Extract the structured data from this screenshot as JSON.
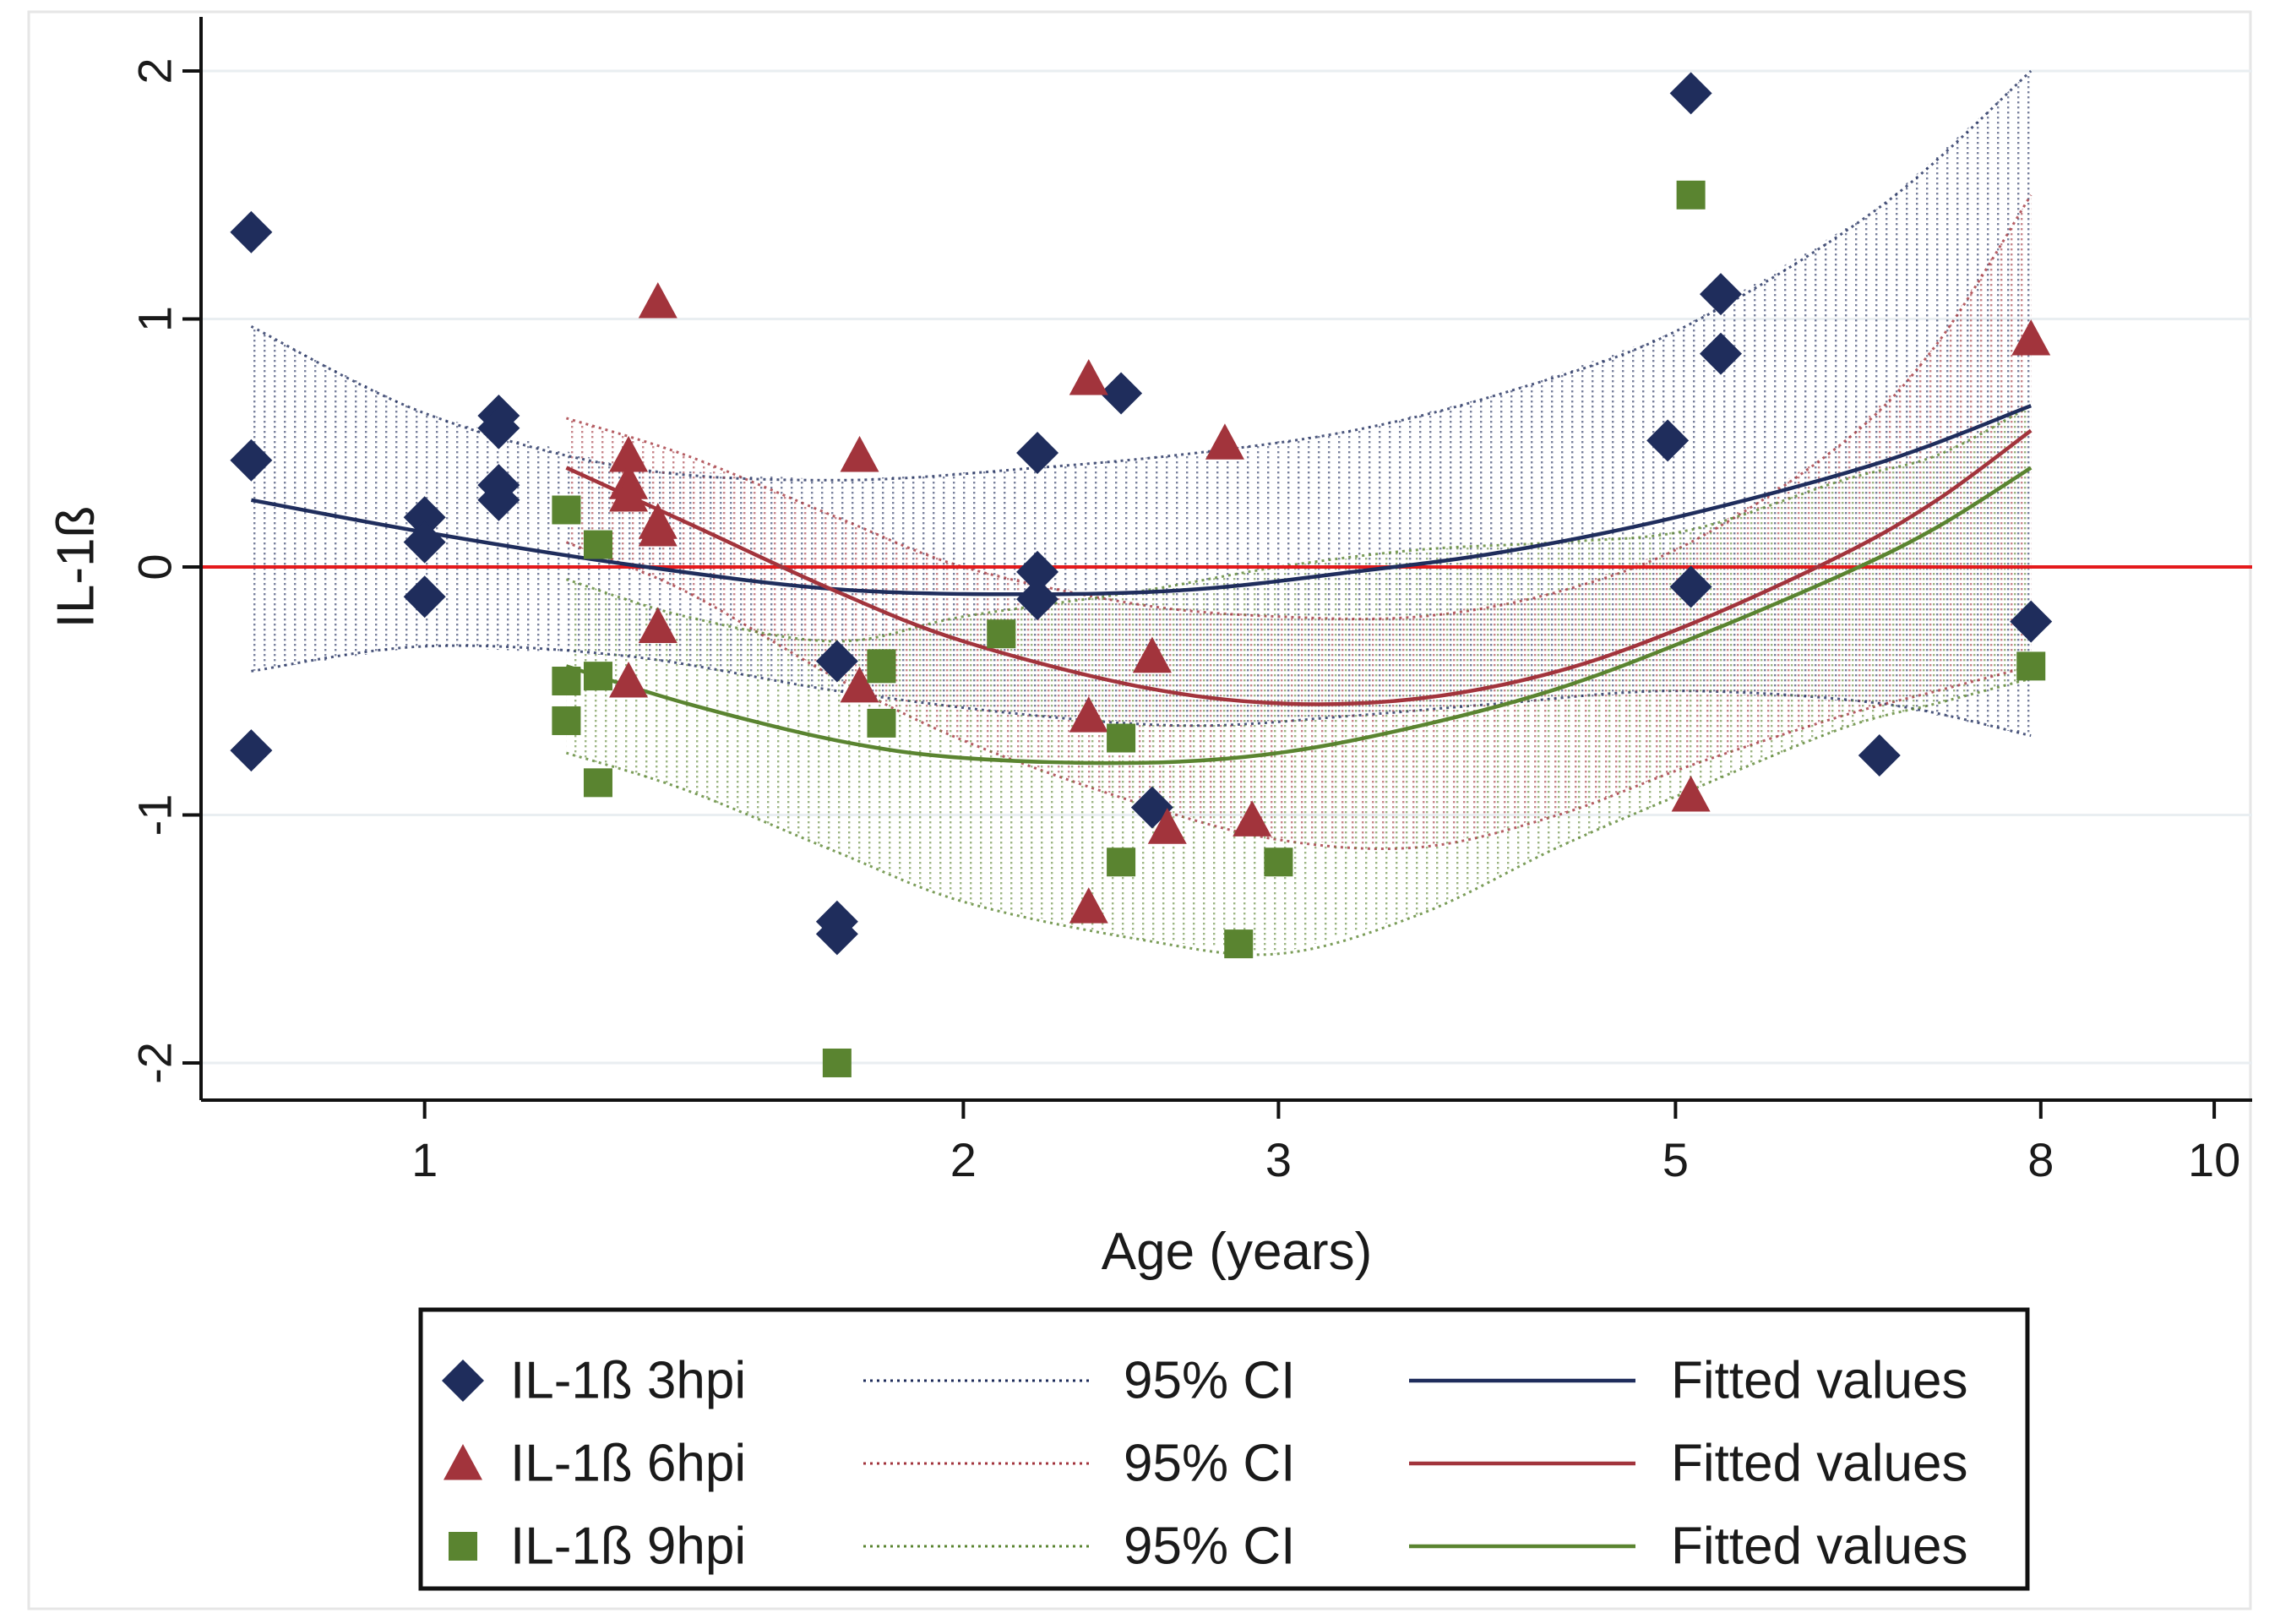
{
  "chart_data": {
    "type": "scatter",
    "title": "",
    "xlabel": "Age (years)",
    "ylabel": "IL-1ß",
    "xscale": "log",
    "xlim": [
      0.75,
      10.5
    ],
    "ylim": [
      -2.15,
      2.15
    ],
    "xticks": [
      1,
      2,
      3,
      5,
      8,
      10
    ],
    "yticks": [
      -2,
      -1,
      0,
      1,
      2
    ],
    "x_tick_labels": [
      "1",
      "2",
      "3",
      "5",
      "8",
      "10"
    ],
    "y_tick_labels": [
      "-2",
      "-1",
      "0",
      "1",
      "2"
    ],
    "reference_line": {
      "y": 0,
      "color": "#e41a1c"
    },
    "grid": true,
    "legend_position": "bottom",
    "series": [
      {
        "name": "IL-1ß 3hpi",
        "marker": "diamond",
        "color": "#1f2d5c",
        "points": [
          [
            0.8,
            1.35
          ],
          [
            0.8,
            0.43
          ],
          [
            0.8,
            -0.74
          ],
          [
            1.0,
            0.2
          ],
          [
            1.0,
            0.1
          ],
          [
            1.0,
            -0.12
          ],
          [
            1.1,
            0.61
          ],
          [
            1.1,
            0.56
          ],
          [
            1.1,
            0.33
          ],
          [
            1.1,
            0.27
          ],
          [
            1.7,
            -0.38
          ],
          [
            1.7,
            -1.43
          ],
          [
            1.7,
            -1.48
          ],
          [
            2.2,
            0.46
          ],
          [
            2.2,
            -0.02
          ],
          [
            2.2,
            -0.13
          ],
          [
            2.45,
            0.7
          ],
          [
            2.55,
            -0.97
          ],
          [
            4.95,
            0.51
          ],
          [
            5.1,
            1.91
          ],
          [
            5.1,
            -0.08
          ],
          [
            5.3,
            1.1
          ],
          [
            5.3,
            0.86
          ],
          [
            6.5,
            -0.76
          ],
          [
            7.9,
            -0.22
          ]
        ],
        "fit": [
          [
            0.8,
            0.27
          ],
          [
            1.0,
            0.14
          ],
          [
            1.3,
            0.01
          ],
          [
            1.7,
            -0.09
          ],
          [
            2.2,
            -0.11
          ],
          [
            2.7,
            -0.09
          ],
          [
            3.3,
            -0.02
          ],
          [
            4.0,
            0.06
          ],
          [
            5.0,
            0.2
          ],
          [
            6.5,
            0.42
          ],
          [
            7.9,
            0.65
          ]
        ],
        "ci_upper": [
          [
            0.8,
            0.97
          ],
          [
            1.0,
            0.62
          ],
          [
            1.3,
            0.4
          ],
          [
            1.7,
            0.35
          ],
          [
            2.2,
            0.4
          ],
          [
            2.7,
            0.46
          ],
          [
            3.3,
            0.55
          ],
          [
            4.0,
            0.7
          ],
          [
            5.0,
            0.95
          ],
          [
            6.5,
            1.45
          ],
          [
            7.9,
            2.0
          ]
        ],
        "ci_lower": [
          [
            0.8,
            -0.42
          ],
          [
            1.0,
            -0.32
          ],
          [
            1.3,
            -0.36
          ],
          [
            1.7,
            -0.5
          ],
          [
            2.2,
            -0.6
          ],
          [
            2.7,
            -0.64
          ],
          [
            3.3,
            -0.6
          ],
          [
            4.0,
            -0.55
          ],
          [
            5.0,
            -0.5
          ],
          [
            6.5,
            -0.55
          ],
          [
            7.9,
            -0.68
          ]
        ]
      },
      {
        "name": "IL-1ß 6hpi",
        "marker": "triangle",
        "color": "#a2343c",
        "points": [
          [
            1.35,
            1.07
          ],
          [
            1.3,
            0.45
          ],
          [
            1.3,
            0.34
          ],
          [
            1.3,
            0.29
          ],
          [
            1.35,
            0.18
          ],
          [
            1.35,
            0.15
          ],
          [
            1.35,
            -0.24
          ],
          [
            1.3,
            -0.46
          ],
          [
            1.75,
            0.45
          ],
          [
            1.75,
            -0.48
          ],
          [
            2.35,
            0.76
          ],
          [
            2.35,
            -0.6
          ],
          [
            2.35,
            -1.37
          ],
          [
            2.55,
            -0.36
          ],
          [
            2.6,
            -1.05
          ],
          [
            2.8,
            0.5
          ],
          [
            2.9,
            -1.02
          ],
          [
            5.1,
            -0.92
          ],
          [
            7.9,
            0.92
          ]
        ],
        "fit": [
          [
            1.2,
            0.4
          ],
          [
            1.4,
            0.18
          ],
          [
            1.7,
            -0.1
          ],
          [
            2.0,
            -0.3
          ],
          [
            2.5,
            -0.48
          ],
          [
            3.0,
            -0.55
          ],
          [
            3.6,
            -0.53
          ],
          [
            4.3,
            -0.42
          ],
          [
            5.1,
            -0.23
          ],
          [
            6.2,
            0.05
          ],
          [
            7.0,
            0.27
          ],
          [
            7.9,
            0.55
          ]
        ],
        "ci_upper": [
          [
            1.2,
            0.6
          ],
          [
            1.4,
            0.45
          ],
          [
            1.7,
            0.2
          ],
          [
            2.0,
            0.0
          ],
          [
            2.5,
            -0.15
          ],
          [
            3.0,
            -0.2
          ],
          [
            3.6,
            -0.2
          ],
          [
            4.3,
            -0.1
          ],
          [
            5.1,
            0.1
          ],
          [
            6.2,
            0.5
          ],
          [
            7.0,
            0.9
          ],
          [
            7.9,
            1.5
          ]
        ],
        "ci_lower": [
          [
            1.2,
            0.1
          ],
          [
            1.4,
            -0.1
          ],
          [
            1.7,
            -0.45
          ],
          [
            2.0,
            -0.7
          ],
          [
            2.5,
            -0.95
          ],
          [
            3.0,
            -1.1
          ],
          [
            3.6,
            -1.13
          ],
          [
            4.3,
            -1.0
          ],
          [
            5.1,
            -0.8
          ],
          [
            6.2,
            -0.6
          ],
          [
            7.0,
            -0.5
          ],
          [
            7.9,
            -0.4
          ]
        ]
      },
      {
        "name": "IL-1ß 9hpi",
        "marker": "square",
        "color": "#5a8430",
        "points": [
          [
            1.2,
            0.23
          ],
          [
            1.2,
            -0.46
          ],
          [
            1.2,
            -0.62
          ],
          [
            1.25,
            0.09
          ],
          [
            1.25,
            -0.44
          ],
          [
            1.25,
            -0.87
          ],
          [
            1.7,
            -2.0
          ],
          [
            1.8,
            -0.39
          ],
          [
            1.8,
            -0.41
          ],
          [
            1.8,
            -0.63
          ],
          [
            2.1,
            -0.27
          ],
          [
            2.45,
            -0.69
          ],
          [
            2.45,
            -1.19
          ],
          [
            2.85,
            -1.52
          ],
          [
            3.0,
            -1.19
          ],
          [
            5.1,
            1.5
          ],
          [
            7.9,
            -0.4
          ]
        ],
        "fit": [
          [
            1.2,
            -0.4
          ],
          [
            1.4,
            -0.55
          ],
          [
            1.7,
            -0.7
          ],
          [
            2.0,
            -0.77
          ],
          [
            2.5,
            -0.79
          ],
          [
            3.0,
            -0.75
          ],
          [
            3.6,
            -0.64
          ],
          [
            4.3,
            -0.49
          ],
          [
            5.1,
            -0.29
          ],
          [
            6.2,
            -0.03
          ],
          [
            7.0,
            0.16
          ],
          [
            7.9,
            0.4
          ]
        ],
        "ci_upper": [
          [
            1.2,
            -0.05
          ],
          [
            1.4,
            -0.2
          ],
          [
            1.7,
            -0.3
          ],
          [
            2.0,
            -0.2
          ],
          [
            2.5,
            -0.1
          ],
          [
            3.0,
            0.0
          ],
          [
            3.6,
            0.07
          ],
          [
            4.3,
            0.1
          ],
          [
            5.1,
            0.15
          ],
          [
            6.2,
            0.35
          ],
          [
            7.0,
            0.45
          ],
          [
            7.9,
            0.65
          ]
        ],
        "ci_lower": [
          [
            1.2,
            -0.75
          ],
          [
            1.4,
            -0.9
          ],
          [
            1.7,
            -1.15
          ],
          [
            2.0,
            -1.35
          ],
          [
            2.5,
            -1.5
          ],
          [
            3.0,
            -1.56
          ],
          [
            3.6,
            -1.4
          ],
          [
            4.3,
            -1.13
          ],
          [
            5.1,
            -0.9
          ],
          [
            6.2,
            -0.65
          ],
          [
            7.0,
            -0.55
          ],
          [
            7.9,
            -0.45
          ]
        ]
      }
    ],
    "legend": {
      "rows": [
        {
          "marker_label": "IL-1ß 3hpi",
          "ci_label": "95% CI",
          "fit_label": "Fitted values"
        },
        {
          "marker_label": "IL-1ß 6hpi",
          "ci_label": "95% CI",
          "fit_label": "Fitted values"
        },
        {
          "marker_label": "IL-1ß 9hpi",
          "ci_label": "95% CI",
          "fit_label": "Fitted values"
        }
      ]
    }
  }
}
